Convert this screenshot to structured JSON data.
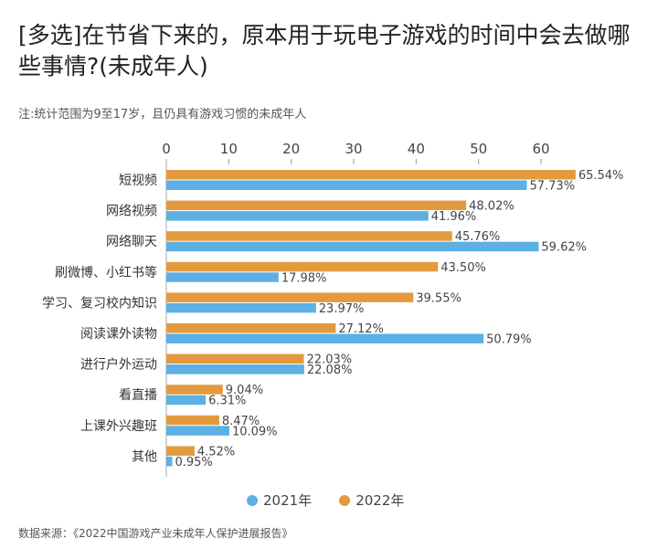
{
  "chart_data": {
    "type": "bar",
    "orientation": "horizontal",
    "title": "[多选]在节省下来的，原本用于玩电子游戏的时间中会去做哪些事情?(未成年人)",
    "subtitle": "注:统计范围为9至17岁，且仍具有游戏习惯的未成年人",
    "source": "数据来源：《2022中国游戏产业未成年人保护进展报告》",
    "categories": [
      "短视频",
      "网络视频",
      "网络聊天",
      "刷微博、小红书等",
      "学习、复习校内知识",
      "阅读课外读物",
      "进行户外运动",
      "看直播",
      "上课外兴趣班",
      "其他"
    ],
    "series": [
      {
        "name": "2022年",
        "color": "#e39a3f",
        "values": [
          65.54,
          48.02,
          45.76,
          43.5,
          39.55,
          27.12,
          22.03,
          9.04,
          8.47,
          4.52
        ]
      },
      {
        "name": "2021年",
        "color": "#5cb0e3",
        "values": [
          57.73,
          41.96,
          59.62,
          17.98,
          23.97,
          50.79,
          22.08,
          6.31,
          10.09,
          0.95
        ]
      }
    ],
    "xticks": [
      "0",
      "10",
      "20",
      "30",
      "40",
      "50",
      "60"
    ],
    "xlim": [
      0,
      67
    ],
    "axis_position": "top",
    "legend_position": "bottom",
    "legend": [
      "2021年",
      "2022年"
    ],
    "value_suffix": "%",
    "grid": false
  }
}
